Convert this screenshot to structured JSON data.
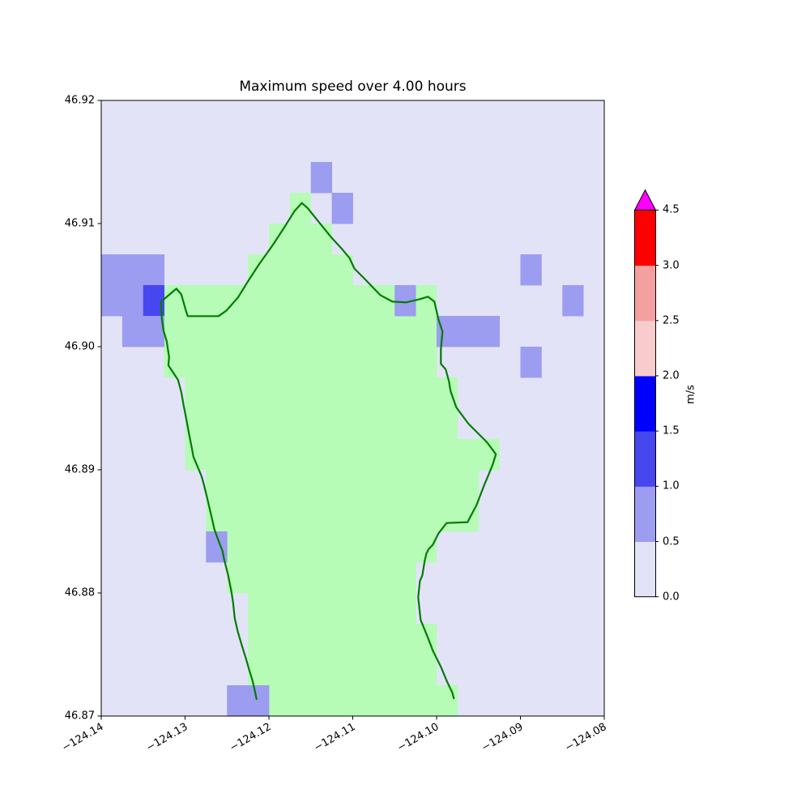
{
  "title": "Maximum speed over 4.00 hours",
  "axes": {
    "xlim": [
      -124.14,
      -124.08
    ],
    "ylim": [
      46.87,
      46.92
    ],
    "x_tick_values": [
      -124.14,
      -124.13,
      -124.12,
      -124.11,
      -124.1,
      -124.09,
      -124.08
    ],
    "x_tick_labels": [
      "−124.14",
      "−124.13",
      "−124.12",
      "−124.11",
      "−124.10",
      "−124.09",
      "−124.08"
    ],
    "y_tick_values": [
      46.87,
      46.88,
      46.89,
      46.9,
      46.91,
      46.92
    ],
    "y_tick_labels": [
      "46.87",
      "46.88",
      "46.89",
      "46.90",
      "46.91",
      "46.92"
    ]
  },
  "colorbar": {
    "label": "m/s",
    "boundaries": [
      0.0,
      0.5,
      1.0,
      1.5,
      2.0,
      2.5,
      3.0,
      4.5
    ],
    "tick_labels": [
      "0.0",
      "0.5",
      "1.0",
      "1.5",
      "2.0",
      "2.5",
      "3.0",
      "4.5"
    ],
    "segment_colors": [
      "#E3E3F8",
      "#9C9CF0",
      "#4747F0",
      "#0000FF",
      "#F8CCCC",
      "#F5A0A0",
      "#FF0000"
    ],
    "over_color": "#FF00FF",
    "spacing": "uniform",
    "position": "right"
  },
  "colors": {
    "background": "#FFFFFF",
    "sea": "#E3E3F8",
    "land": "#B6FBB6",
    "coastline": "#007D00",
    "frame": "#000000"
  },
  "chart_data": {
    "type": "heatmap",
    "title": "Maximum speed over 4.00 hours",
    "units": "m/s",
    "xlabel": "",
    "ylabel": "",
    "grid": {
      "lon_origin": -124.14,
      "lat_origin": 46.87,
      "dlon": 0.0025,
      "dlat": 0.0025,
      "ncols": 24,
      "nrows": 20
    },
    "land_rows": [
      {
        "row": 0,
        "spans": [
          [
            8,
            16
          ]
        ]
      },
      {
        "row": 1,
        "spans": [
          [
            7,
            15
          ]
        ]
      },
      {
        "row": 2,
        "spans": [
          [
            7,
            15
          ]
        ]
      },
      {
        "row": 3,
        "spans": [
          [
            7,
            14
          ]
        ]
      },
      {
        "row": 4,
        "spans": [
          [
            6,
            14
          ]
        ]
      },
      {
        "row": 5,
        "spans": [
          [
            6,
            15
          ]
        ]
      },
      {
        "row": 6,
        "spans": [
          [
            5,
            17
          ]
        ]
      },
      {
        "row": 7,
        "spans": [
          [
            5,
            17
          ]
        ]
      },
      {
        "row": 8,
        "spans": [
          [
            4,
            18
          ]
        ]
      },
      {
        "row": 9,
        "spans": [
          [
            4,
            16
          ]
        ]
      },
      {
        "row": 10,
        "spans": [
          [
            4,
            16
          ]
        ]
      },
      {
        "row": 11,
        "spans": [
          [
            3,
            15
          ]
        ]
      },
      {
        "row": 12,
        "spans": [
          [
            3,
            15
          ]
        ]
      },
      {
        "row": 13,
        "spans": [
          [
            3,
            13
          ],
          [
            15,
            15
          ]
        ]
      },
      {
        "row": 14,
        "spans": [
          [
            7,
            11
          ]
        ]
      },
      {
        "row": 15,
        "spans": [
          [
            8,
            10
          ]
        ]
      },
      {
        "row": 16,
        "spans": [
          [
            9,
            9
          ]
        ]
      }
    ],
    "speed_cells": [
      {
        "col": 0,
        "row": 14,
        "band": 1
      },
      {
        "col": 1,
        "row": 14,
        "band": 1
      },
      {
        "col": 2,
        "row": 14,
        "band": 1
      },
      {
        "col": 0,
        "row": 13,
        "band": 1
      },
      {
        "col": 1,
        "row": 13,
        "band": 1
      },
      {
        "col": 2,
        "row": 13,
        "band": 2
      },
      {
        "col": 1,
        "row": 12,
        "band": 1
      },
      {
        "col": 2,
        "row": 12,
        "band": 1
      },
      {
        "col": 10,
        "row": 17,
        "band": 1
      },
      {
        "col": 11,
        "row": 16,
        "band": 1
      },
      {
        "col": 14,
        "row": 13,
        "band": 1
      },
      {
        "col": 16,
        "row": 12,
        "band": 1
      },
      {
        "col": 17,
        "row": 12,
        "band": 1
      },
      {
        "col": 18,
        "row": 12,
        "band": 1
      },
      {
        "col": 20,
        "row": 14,
        "band": 1
      },
      {
        "col": 22,
        "row": 13,
        "band": 1
      },
      {
        "col": 20,
        "row": 11,
        "band": 1
      },
      {
        "col": 5,
        "row": 5,
        "band": 1
      },
      {
        "col": 6,
        "row": 0,
        "band": 1
      },
      {
        "col": 7,
        "row": 0,
        "band": 1
      }
    ],
    "coastline": [
      [
        -124.12148,
        46.87138
      ],
      [
        -124.12167,
        46.87203
      ],
      [
        -124.12196,
        46.87289
      ],
      [
        -124.12235,
        46.87374
      ],
      [
        -124.12273,
        46.87466
      ],
      [
        -124.12322,
        46.87571
      ],
      [
        -124.1237,
        46.87682
      ],
      [
        -124.12408,
        46.87794
      ],
      [
        -124.12428,
        46.87925
      ],
      [
        -124.12447,
        46.8801
      ],
      [
        -124.12486,
        46.88142
      ],
      [
        -124.12534,
        46.88273
      ],
      [
        -124.12553,
        46.88339
      ],
      [
        -124.12601,
        46.88424
      ],
      [
        -124.1265,
        46.88516
      ],
      [
        -124.12678,
        46.88601
      ],
      [
        -124.12717,
        46.88713
      ],
      [
        -124.12746,
        46.88798
      ],
      [
        -124.12775,
        46.88877
      ],
      [
        -124.12804,
        46.88949
      ],
      [
        -124.129,
        46.89106
      ],
      [
        -124.1292,
        46.89178
      ],
      [
        -124.12949,
        46.89277
      ],
      [
        -124.12997,
        46.89454
      ],
      [
        -124.13016,
        46.8952
      ],
      [
        -124.13045,
        46.89631
      ],
      [
        -124.13084,
        46.8973
      ],
      [
        -124.13199,
        46.89848
      ],
      [
        -124.1319,
        46.89913
      ],
      [
        -124.13219,
        46.90045
      ],
      [
        -124.13257,
        46.9013
      ],
      [
        -124.13277,
        46.90228
      ],
      [
        -124.13286,
        46.90366
      ],
      [
        -124.13103,
        46.90471
      ],
      [
        -124.13045,
        46.90425
      ],
      [
        -124.12987,
        46.90287
      ],
      [
        -124.12968,
        46.90248
      ],
      [
        -124.12601,
        46.90248
      ],
      [
        -124.12505,
        46.90294
      ],
      [
        -124.1237,
        46.90399
      ],
      [
        -124.12244,
        46.90537
      ],
      [
        -124.12119,
        46.90668
      ],
      [
        -124.11955,
        46.90825
      ],
      [
        -124.1181,
        46.90976
      ],
      [
        -124.11695,
        46.91101
      ],
      [
        -124.11608,
        46.91167
      ],
      [
        -124.1154,
        46.91127
      ],
      [
        -124.11424,
        46.91029
      ],
      [
        -124.1126,
        46.90891
      ],
      [
        -124.11135,
        46.90799
      ],
      [
        -124.11039,
        46.9072
      ],
      [
        -124.10981,
        46.90635
      ],
      [
        -124.10846,
        46.90543
      ],
      [
        -124.10672,
        46.90419
      ],
      [
        -124.10527,
        46.90366
      ],
      [
        -124.10363,
        46.9036
      ],
      [
        -124.10199,
        46.90386
      ],
      [
        -124.10103,
        46.90406
      ],
      [
        -124.10026,
        46.90366
      ],
      [
        -124.09978,
        46.90222
      ],
      [
        -124.09929,
        46.90123
      ],
      [
        -124.09949,
        46.89979
      ],
      [
        -124.09949,
        46.89861
      ],
      [
        -124.09891,
        46.89815
      ],
      [
        -124.09852,
        46.89717
      ],
      [
        -124.09833,
        46.89638
      ],
      [
        -124.09765,
        46.89507
      ],
      [
        -124.09621,
        46.89375
      ],
      [
        -124.09399,
        46.89224
      ],
      [
        -124.09293,
        46.89126
      ],
      [
        -124.09331,
        46.89041
      ],
      [
        -124.09399,
        46.88929
      ],
      [
        -124.09428,
        46.88883
      ],
      [
        -124.09524,
        46.88713
      ],
      [
        -124.09611,
        46.88601
      ],
      [
        -124.0963,
        46.88575
      ],
      [
        -124.09881,
        46.88568
      ],
      [
        -124.09978,
        46.88483
      ],
      [
        -124.10045,
        46.88391
      ],
      [
        -124.10093,
        46.88358
      ],
      [
        -124.10122,
        46.88319
      ],
      [
        -124.10142,
        46.8826
      ],
      [
        -124.1017,
        46.88142
      ],
      [
        -124.10199,
        46.88096
      ],
      [
        -124.10219,
        46.87965
      ],
      [
        -124.1019,
        46.87781
      ],
      [
        -124.10103,
        46.87636
      ],
      [
        -124.10045,
        46.87532
      ],
      [
        -124.09949,
        46.874
      ],
      [
        -124.09881,
        46.87289
      ],
      [
        -124.09813,
        46.8719
      ],
      [
        -124.09794,
        46.87144
      ]
    ]
  }
}
